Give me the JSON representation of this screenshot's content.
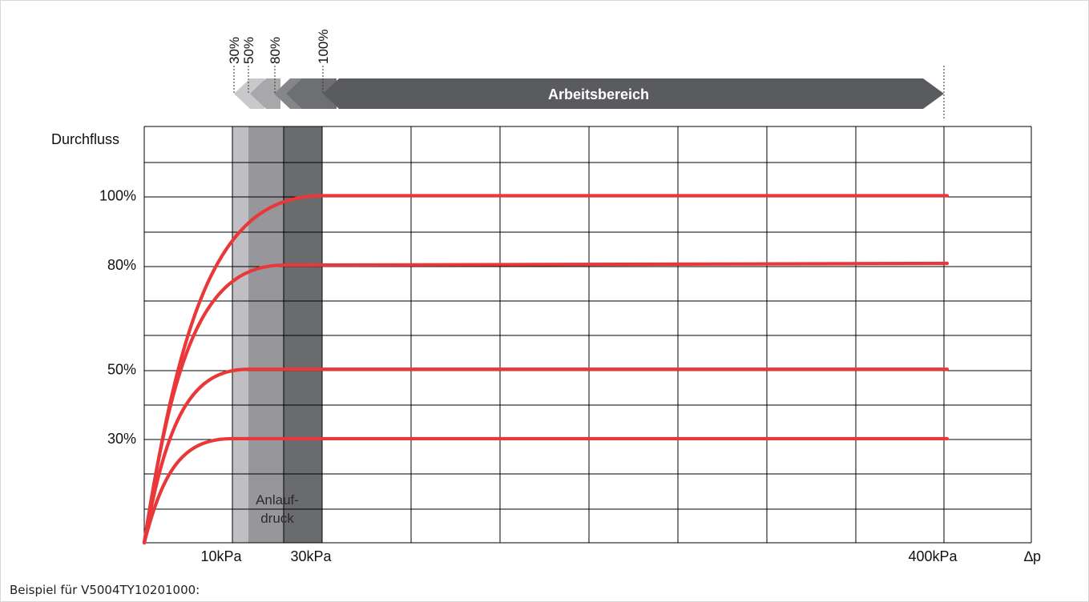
{
  "chart_data": {
    "type": "line",
    "ylabel": "Durchfluss",
    "xlabel": "∆p",
    "x_ticks": [
      "10kPa",
      "30kPa",
      "400kPa"
    ],
    "y_ticks": [
      "30%",
      "50%",
      "80%",
      "100%"
    ],
    "series": [
      {
        "setting": 30,
        "start_pressure_kpa": 10,
        "points": [
          [
            0,
            0
          ],
          [
            10,
            30
          ],
          [
            400,
            30
          ]
        ]
      },
      {
        "setting": 50,
        "start_pressure_kpa": 12,
        "points": [
          [
            0,
            0
          ],
          [
            12,
            50
          ],
          [
            400,
            50
          ]
        ]
      },
      {
        "setting": 80,
        "start_pressure_kpa": 20,
        "points": [
          [
            0,
            0
          ],
          [
            20,
            80
          ],
          [
            400,
            80.5
          ]
        ]
      },
      {
        "setting": 100,
        "start_pressure_kpa": 30,
        "points": [
          [
            0,
            0
          ],
          [
            30,
            100
          ],
          [
            400,
            100
          ]
        ]
      }
    ],
    "startup_band": {
      "label": "Anlauf-\ndruck",
      "line1": "Anlauf-",
      "line2": "druck"
    },
    "working_range": {
      "label": "Arbeitsbereich",
      "markers": [
        "30%",
        "50%",
        "80%",
        "100%"
      ]
    },
    "colors": {
      "curve": "#e8383a",
      "band_light": "#bfbfc3",
      "band_mid": "#97979b",
      "band_dark": "#6a6b6f",
      "arrow_dark": "#5a5b5e",
      "grid": "#000000"
    },
    "grid": true
  },
  "caption": "Beispiel für V5004TY10201000:"
}
